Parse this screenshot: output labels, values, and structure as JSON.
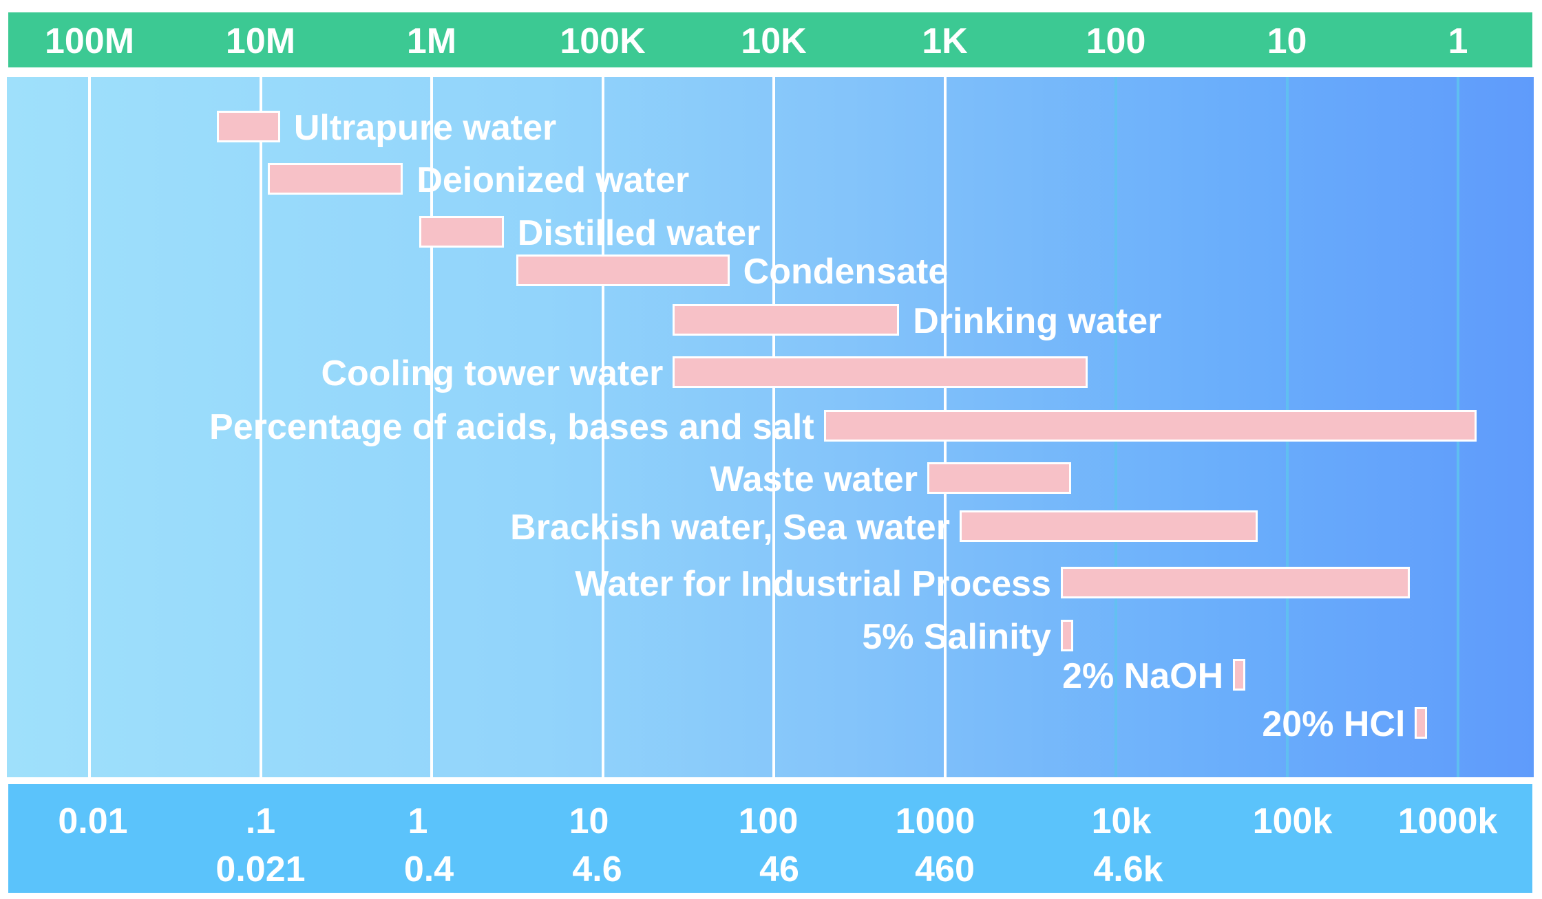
{
  "chart_data": {
    "type": "bar",
    "orientation": "horizontal-range",
    "x_scale": "log",
    "x_range": [
      0.0056,
      8000000
    ],
    "top_axis": {
      "tick_values": [
        0.01,
        0.1,
        1,
        10,
        100,
        1000,
        10000,
        100000,
        1000000
      ],
      "tick_labels": [
        "100M",
        "10M",
        "1M",
        "100K",
        "10K",
        "1K",
        "100",
        "10",
        "1"
      ]
    },
    "bottom_axis": {
      "tick_values": [
        0.01,
        0.1,
        1,
        10,
        100,
        1000,
        10000,
        100000,
        1000000
      ],
      "tick_labels": [
        "0.01",
        ".1",
        "1",
        "10",
        "100",
        "1000",
        "10k",
        "100k",
        "1000k"
      ],
      "secondary_tick_values": [
        0.1,
        1,
        10,
        100,
        1000,
        10000
      ],
      "secondary_tick_labels": [
        "0.021",
        "0.4",
        "4.6",
        "46",
        "460",
        "4.6k"
      ]
    },
    "series": [
      {
        "label": "Ultrapure water",
        "range": [
          0.0556,
          0.13
        ],
        "label_side": "right"
      },
      {
        "label": "Deionized water",
        "range": [
          0.11,
          0.68
        ],
        "label_side": "right"
      },
      {
        "label": "Distilled water",
        "range": [
          0.85,
          2.64
        ],
        "label_side": "right"
      },
      {
        "label": "Condensate",
        "range": [
          3.13,
          55.1
        ],
        "label_side": "right"
      },
      {
        "label": "Drinking water",
        "range": [
          25.7,
          541
        ],
        "label_side": "right"
      },
      {
        "label": "Cooling tower water",
        "range": [
          25.7,
          6810
        ],
        "label_side": "left"
      },
      {
        "label": "Percentage of acids, bases and salt",
        "range": [
          196,
          1280000
        ],
        "label_side": "left"
      },
      {
        "label": "Waste water",
        "range": [
          789,
          5470
        ],
        "label_side": "left"
      },
      {
        "label": "Brackish water, Sea water",
        "range": [
          1220,
          67600
        ],
        "label_side": "left"
      },
      {
        "label": "Water for Industrial Process",
        "range": [
          4760,
          523000
        ],
        "label_side": "left"
      },
      {
        "label": "5% Salinity",
        "range": [
          4760,
          5470
        ],
        "label_side": "left"
      },
      {
        "label": "2% NaOH",
        "range": [
          48400,
          56300
        ],
        "label_side": "left"
      },
      {
        "label": "20% HCl",
        "range": [
          560000,
          640000
        ],
        "label_side": "left"
      }
    ],
    "colors": {
      "bar": "#f7c1c7",
      "top_band": "#3cc993",
      "bottom_band": "#5bc3fb"
    }
  }
}
